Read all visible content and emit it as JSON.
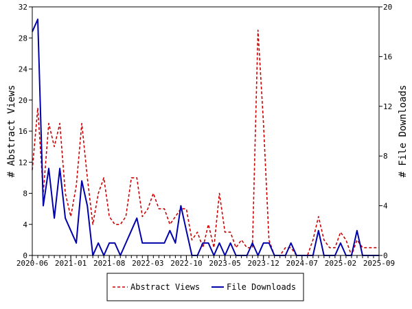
{
  "chart_data": {
    "type": "line",
    "title": "",
    "xlabel": "",
    "ylabel": "# Abstract Views",
    "y2label": "# File Downloads",
    "ylim": [
      0,
      32
    ],
    "y2lim": [
      0,
      20
    ],
    "yticks": [
      0,
      4,
      8,
      12,
      16,
      20,
      24,
      28,
      32
    ],
    "y2ticks": [
      0,
      4,
      8,
      12,
      16,
      20
    ],
    "x_tick_labels": [
      "2020-06",
      "2021-01",
      "2021-08",
      "2022-03",
      "2022-10",
      "2023-05",
      "2023-12",
      "2024-07",
      "2025-02",
      "2025-09"
    ],
    "x": [
      "2020-06",
      "2020-07",
      "2020-08",
      "2020-09",
      "2020-10",
      "2020-11",
      "2020-12",
      "2021-01",
      "2021-02",
      "2021-03",
      "2021-04",
      "2021-05",
      "2021-06",
      "2021-07",
      "2021-08",
      "2021-09",
      "2021-10",
      "2021-11",
      "2021-12",
      "2022-01",
      "2022-02",
      "2022-03",
      "2022-04",
      "2022-05",
      "2022-06",
      "2022-07",
      "2022-08",
      "2022-09",
      "2022-10",
      "2022-11",
      "2022-12",
      "2023-01",
      "2023-02",
      "2023-03",
      "2023-04",
      "2023-05",
      "2023-06",
      "2023-07",
      "2023-08",
      "2023-09",
      "2023-10",
      "2023-11",
      "2023-12",
      "2024-01",
      "2024-02",
      "2024-03",
      "2024-04",
      "2024-05",
      "2024-06",
      "2024-07",
      "2024-08",
      "2024-09",
      "2024-10",
      "2024-11",
      "2024-12",
      "2025-01",
      "2025-02",
      "2025-03",
      "2025-04",
      "2025-05",
      "2025-06",
      "2025-07",
      "2025-08",
      "2025-09"
    ],
    "grid": false,
    "legend_position": "bottom",
    "series": [
      {
        "name": "Abstract Views",
        "axis": "left",
        "color": "#cc0000",
        "dash": "dashed",
        "values": [
          11,
          19,
          8,
          17,
          14,
          17,
          8,
          5,
          9,
          17,
          10,
          4,
          8,
          10,
          5,
          4,
          4,
          5,
          10,
          10,
          5,
          6,
          8,
          6,
          6,
          4,
          5,
          6,
          6,
          2,
          3,
          1,
          4,
          1,
          8,
          3,
          3,
          1,
          2,
          1,
          1,
          29,
          17,
          2,
          0,
          0,
          1,
          1,
          0,
          0,
          0,
          2,
          5,
          2,
          1,
          1,
          3,
          2,
          0,
          2,
          1,
          1,
          1,
          1
        ]
      },
      {
        "name": "File Downloads",
        "axis": "right",
        "color": "#0000aa",
        "dash": "solid",
        "values": [
          18,
          19,
          4,
          7,
          3,
          7,
          3,
          2,
          1,
          6,
          4,
          0,
          1,
          0,
          1,
          1,
          0,
          1,
          2,
          3,
          1,
          1,
          1,
          1,
          1,
          2,
          1,
          4,
          2,
          0,
          0,
          1,
          1,
          0,
          1,
          0,
          1,
          0,
          0,
          0,
          1,
          0,
          1,
          1,
          0,
          0,
          0,
          1,
          0,
          0,
          0,
          0,
          2,
          0,
          0,
          0,
          1,
          0,
          0,
          2,
          0,
          0,
          0,
          0
        ]
      }
    ]
  }
}
